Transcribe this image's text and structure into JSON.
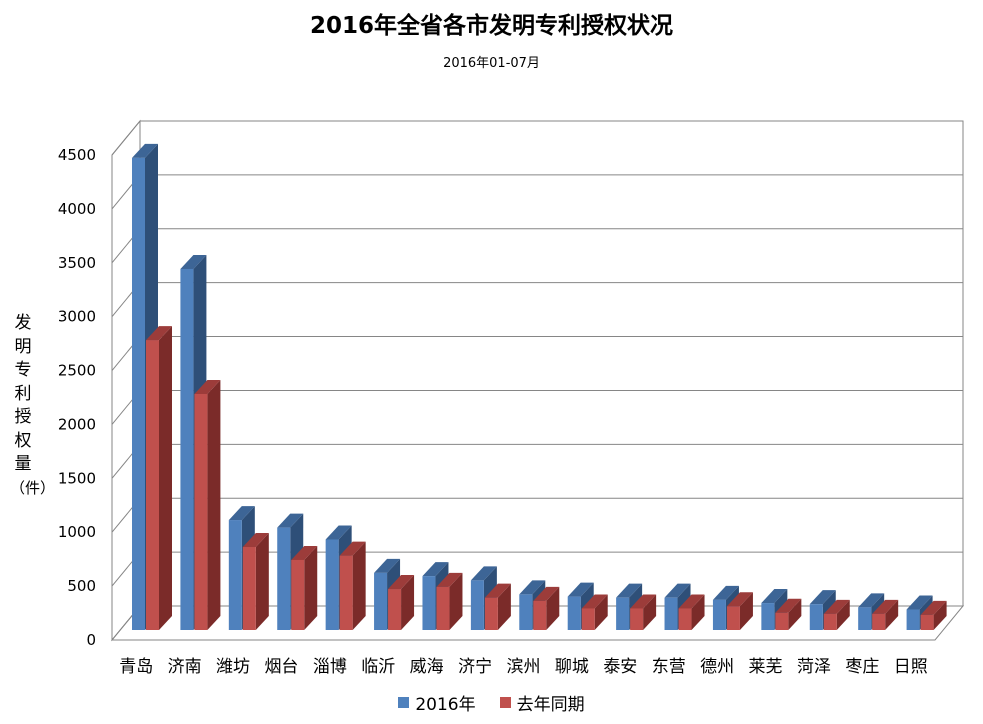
{
  "colors": {
    "series_2016_front": "#4F81BD",
    "series_2016_side": "#2E4F78",
    "series_2016_top": "#3D6596",
    "series_last_front": "#C0504D",
    "series_last_side": "#7B2B29",
    "series_last_top": "#9C3C3A",
    "grid": "#868686",
    "wall": "#ffffff"
  },
  "chart_data": {
    "type": "bar",
    "style": "3d-clustered-column",
    "title": "2016年全省各市发明专利授权状况",
    "subtitle": "2016年01-07月",
    "ylabel_chars": [
      "发",
      "明",
      "专",
      "利",
      "授",
      "权",
      "量",
      "（件）"
    ],
    "xlabel": "",
    "ylim": [
      0,
      4500
    ],
    "yticks": [
      0,
      500,
      1000,
      1500,
      2000,
      2500,
      3000,
      3500,
      4000,
      4500
    ],
    "ytick_labels": [
      "0",
      "500",
      "1000",
      "1500",
      "2000",
      "2500",
      "3000",
      "3500",
      "4000",
      "4500"
    ],
    "grid": true,
    "legend_position": "bottom",
    "categories": [
      "青岛",
      "济南",
      "潍坊",
      "烟台",
      "淄博",
      "临沂",
      "威海",
      "济宁",
      "滨州",
      "聊城",
      "泰安",
      "东营",
      "德州",
      "莱芜",
      "菏泽",
      "枣庄",
      "日照"
    ],
    "series": [
      {
        "name": "2016年",
        "values": [
          4380,
          3350,
          1020,
          950,
          840,
          530,
          500,
          460,
          330,
          310,
          300,
          300,
          280,
          250,
          240,
          210,
          190
        ]
      },
      {
        "name": "去年同期",
        "values": [
          2690,
          2190,
          770,
          650,
          690,
          380,
          400,
          300,
          270,
          200,
          200,
          200,
          220,
          160,
          150,
          150,
          140
        ]
      }
    ]
  }
}
